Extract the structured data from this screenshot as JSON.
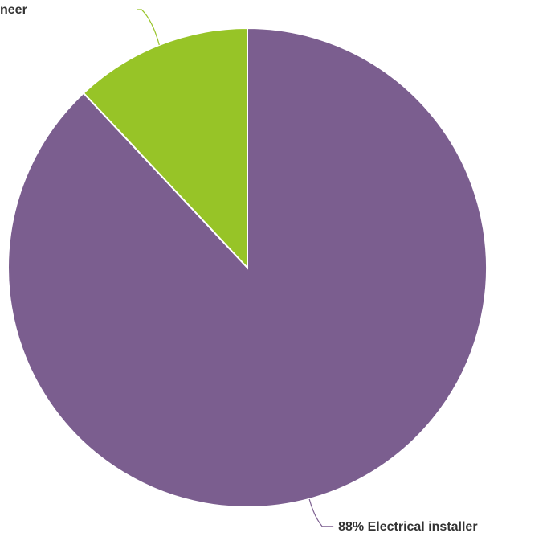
{
  "chart_data": {
    "type": "pie",
    "title": "",
    "slices": [
      {
        "label": "88% Electrical installer",
        "category": "Electrical installer",
        "value": 88,
        "color": "#7b5e8f"
      },
      {
        "label": "neer",
        "category": "",
        "value": 12,
        "color": "#97c427"
      }
    ],
    "start_angle_deg": 0,
    "direction": "clockwise",
    "legend": "none"
  }
}
